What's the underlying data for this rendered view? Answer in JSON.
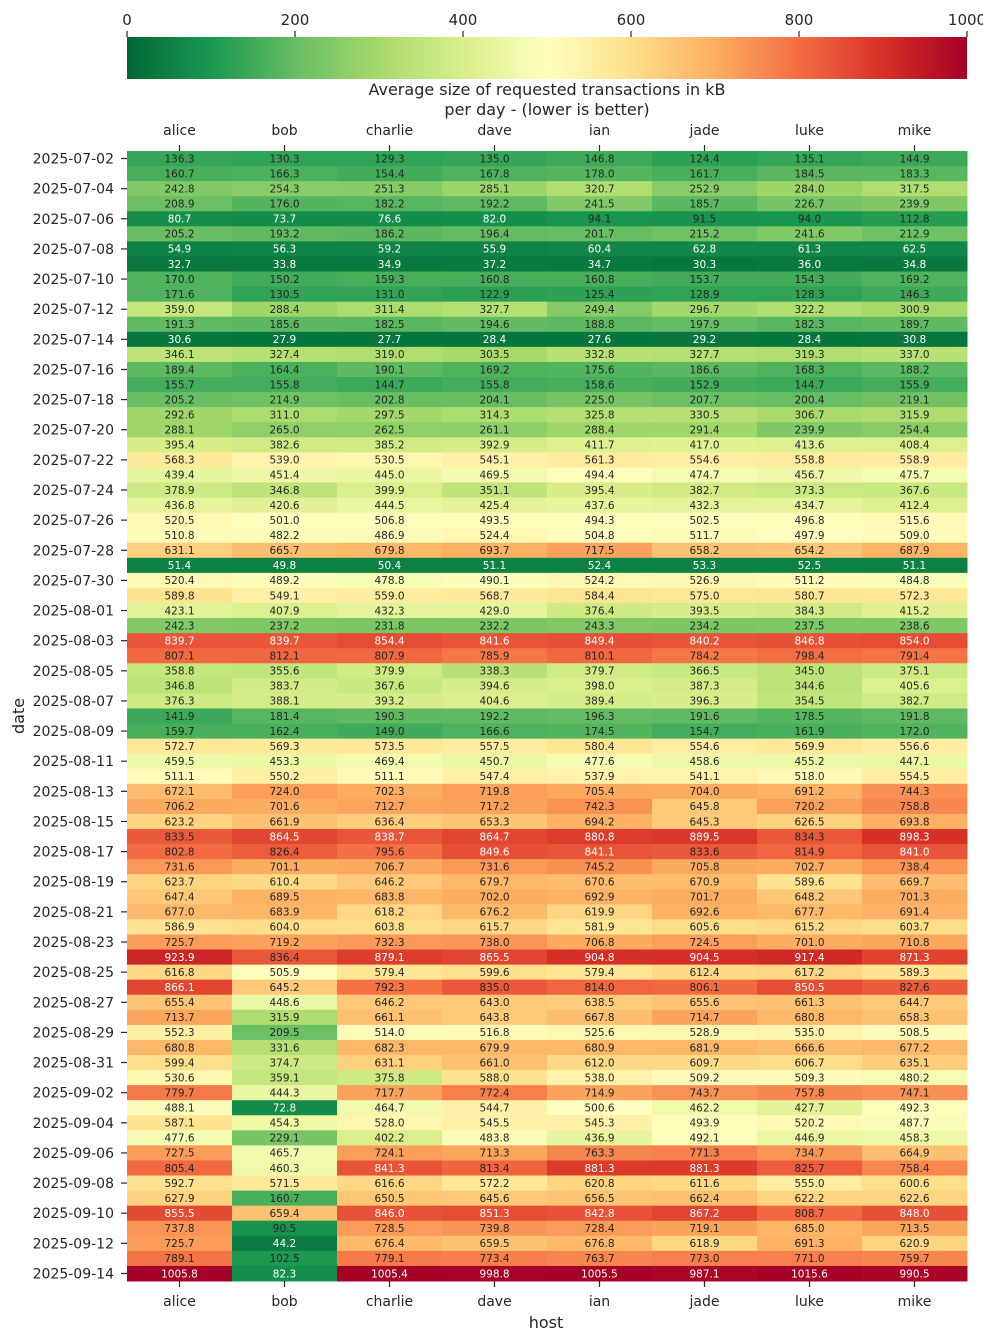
{
  "chart_data": {
    "type": "heatmap",
    "title": "Average size of requested transactions in kB\nper day - (lower is better)",
    "xlabel": "host",
    "ylabel": "date",
    "colormap": "RdYlGn_r",
    "colorbar": {
      "min": 0,
      "max": 1000,
      "ticks": [
        0,
        200,
        400,
        600,
        800,
        1000
      ]
    },
    "hosts": [
      "alice",
      "bob",
      "charlie",
      "dave",
      "ian",
      "jade",
      "luke",
      "mike"
    ],
    "dates": [
      "2025-07-02",
      "2025-07-03",
      "2025-07-04",
      "2025-07-05",
      "2025-07-06",
      "2025-07-07",
      "2025-07-08",
      "2025-07-09",
      "2025-07-10",
      "2025-07-11",
      "2025-07-12",
      "2025-07-13",
      "2025-07-14",
      "2025-07-15",
      "2025-07-16",
      "2025-07-17",
      "2025-07-18",
      "2025-07-19",
      "2025-07-20",
      "2025-07-21",
      "2025-07-22",
      "2025-07-23",
      "2025-07-24",
      "2025-07-25",
      "2025-07-26",
      "2025-07-27",
      "2025-07-28",
      "2025-07-29",
      "2025-07-30",
      "2025-07-31",
      "2025-08-01",
      "2025-08-02",
      "2025-08-03",
      "2025-08-04",
      "2025-08-05",
      "2025-08-06",
      "2025-08-07",
      "2025-08-08",
      "2025-08-09",
      "2025-08-10",
      "2025-08-11",
      "2025-08-12",
      "2025-08-13",
      "2025-08-14",
      "2025-08-15",
      "2025-08-16",
      "2025-08-17",
      "2025-08-18",
      "2025-08-19",
      "2025-08-20",
      "2025-08-21",
      "2025-08-22",
      "2025-08-23",
      "2025-08-24",
      "2025-08-25",
      "2025-08-26",
      "2025-08-27",
      "2025-08-28",
      "2025-08-29",
      "2025-08-30",
      "2025-08-31",
      "2025-09-01",
      "2025-09-02",
      "2025-09-03",
      "2025-09-04",
      "2025-09-05",
      "2025-09-06",
      "2025-09-07",
      "2025-09-08",
      "2025-09-09",
      "2025-09-10",
      "2025-09-11",
      "2025-09-12",
      "2025-09-13",
      "2025-09-14"
    ],
    "values": [
      [
        136.3,
        130.3,
        129.3,
        135.0,
        146.8,
        124.4,
        135.1,
        144.9
      ],
      [
        160.7,
        166.3,
        154.4,
        167.8,
        178.0,
        161.7,
        184.5,
        183.3
      ],
      [
        242.8,
        254.3,
        251.3,
        285.1,
        320.7,
        252.9,
        284.0,
        317.5
      ],
      [
        208.9,
        176.0,
        182.2,
        192.2,
        241.5,
        185.7,
        226.7,
        239.9
      ],
      [
        80.7,
        73.7,
        76.6,
        82.0,
        94.1,
        91.5,
        94.0,
        112.8
      ],
      [
        205.2,
        193.2,
        186.2,
        196.4,
        201.7,
        215.2,
        241.6,
        212.9
      ],
      [
        54.9,
        56.3,
        59.2,
        55.9,
        60.4,
        62.8,
        61.3,
        62.5
      ],
      [
        32.7,
        33.8,
        34.9,
        37.2,
        34.7,
        30.3,
        36.0,
        34.8
      ],
      [
        170.0,
        150.2,
        159.3,
        160.8,
        160.8,
        153.7,
        154.3,
        169.2
      ],
      [
        171.6,
        130.5,
        131.0,
        122.9,
        125.4,
        128.9,
        128.3,
        146.3
      ],
      [
        359.0,
        288.4,
        311.4,
        327.7,
        249.4,
        296.7,
        322.2,
        300.9
      ],
      [
        191.3,
        185.6,
        182.5,
        194.6,
        188.8,
        197.9,
        182.3,
        189.7
      ],
      [
        30.6,
        27.9,
        27.7,
        28.4,
        27.6,
        29.2,
        28.4,
        30.8
      ],
      [
        346.1,
        327.4,
        319.0,
        303.5,
        332.8,
        327.7,
        319.3,
        337.0
      ],
      [
        189.4,
        164.4,
        190.1,
        169.2,
        175.6,
        186.6,
        168.3,
        188.2
      ],
      [
        155.7,
        155.8,
        144.7,
        155.8,
        158.6,
        152.9,
        144.7,
        155.9
      ],
      [
        205.2,
        214.9,
        202.8,
        204.1,
        225.0,
        207.7,
        200.4,
        219.1
      ],
      [
        292.6,
        311.0,
        297.5,
        314.3,
        325.8,
        330.5,
        306.7,
        315.9
      ],
      [
        288.1,
        265.0,
        262.5,
        261.1,
        288.4,
        291.4,
        239.9,
        254.4
      ],
      [
        395.4,
        382.6,
        385.2,
        392.9,
        411.7,
        417.0,
        413.6,
        408.4
      ],
      [
        568.3,
        539.0,
        530.5,
        545.1,
        561.3,
        554.6,
        558.8,
        558.9
      ],
      [
        439.4,
        451.4,
        445.0,
        469.5,
        494.4,
        474.7,
        456.7,
        475.7
      ],
      [
        378.9,
        346.8,
        399.9,
        351.1,
        395.4,
        382.7,
        373.3,
        367.6
      ],
      [
        436.8,
        420.6,
        444.5,
        425.4,
        437.6,
        432.3,
        434.7,
        412.4
      ],
      [
        520.5,
        501.0,
        506.8,
        493.5,
        494.3,
        502.5,
        496.8,
        515.6
      ],
      [
        510.8,
        482.2,
        486.9,
        524.4,
        504.8,
        511.7,
        497.9,
        509.0
      ],
      [
        631.1,
        665.7,
        679.8,
        693.7,
        717.5,
        658.2,
        654.2,
        687.9
      ],
      [
        51.4,
        49.8,
        50.4,
        51.1,
        52.4,
        53.3,
        52.5,
        51.1
      ],
      [
        520.4,
        489.2,
        478.8,
        490.1,
        524.2,
        526.9,
        511.2,
        484.8
      ],
      [
        589.8,
        549.1,
        559.0,
        568.7,
        584.4,
        575.0,
        580.7,
        572.3
      ],
      [
        423.1,
        407.9,
        432.3,
        429.0,
        376.4,
        393.5,
        384.3,
        415.2
      ],
      [
        242.3,
        237.2,
        231.8,
        232.2,
        243.3,
        234.2,
        237.5,
        238.6
      ],
      [
        839.7,
        839.7,
        854.4,
        841.6,
        849.4,
        840.2,
        846.8,
        854.0
      ],
      [
        807.1,
        812.1,
        807.9,
        785.9,
        810.1,
        784.2,
        798.4,
        791.4
      ],
      [
        358.8,
        355.6,
        379.9,
        338.3,
        379.7,
        366.5,
        345.0,
        375.1
      ],
      [
        346.8,
        383.7,
        367.6,
        394.6,
        398.0,
        387.3,
        344.6,
        405.6
      ],
      [
        376.3,
        388.1,
        393.2,
        404.6,
        389.4,
        396.3,
        354.5,
        382.7
      ],
      [
        141.9,
        181.4,
        190.3,
        192.2,
        196.3,
        191.6,
        178.5,
        191.8
      ],
      [
        159.7,
        162.4,
        149.0,
        166.6,
        174.5,
        154.7,
        161.9,
        172.0
      ],
      [
        572.7,
        569.3,
        573.5,
        557.5,
        580.4,
        554.6,
        569.9,
        556.6
      ],
      [
        459.5,
        453.3,
        469.4,
        450.7,
        477.6,
        458.6,
        455.2,
        447.1
      ],
      [
        511.1,
        550.2,
        511.1,
        547.4,
        537.9,
        541.1,
        518.0,
        554.5
      ],
      [
        672.1,
        724.0,
        702.3,
        719.8,
        705.4,
        704.0,
        691.2,
        744.3
      ],
      [
        706.2,
        701.6,
        712.7,
        717.2,
        742.3,
        645.8,
        720.2,
        758.8
      ],
      [
        623.2,
        661.9,
        636.4,
        653.3,
        694.2,
        645.3,
        626.5,
        693.8
      ],
      [
        833.5,
        864.5,
        838.7,
        864.7,
        880.8,
        889.5,
        834.3,
        898.3
      ],
      [
        802.8,
        826.4,
        795.6,
        849.6,
        841.1,
        833.6,
        814.9,
        841.0
      ],
      [
        731.6,
        701.1,
        706.7,
        731.6,
        745.2,
        705.8,
        702.7,
        738.4
      ],
      [
        623.7,
        610.4,
        646.2,
        679.7,
        670.6,
        670.9,
        589.6,
        669.7
      ],
      [
        647.4,
        689.5,
        683.8,
        702.0,
        692.9,
        701.7,
        648.2,
        701.3
      ],
      [
        677.0,
        683.9,
        618.2,
        676.2,
        619.9,
        692.6,
        677.7,
        691.4
      ],
      [
        586.9,
        604.0,
        603.8,
        615.7,
        581.9,
        605.6,
        615.2,
        603.7
      ],
      [
        725.7,
        719.2,
        732.3,
        738.0,
        706.8,
        724.5,
        701.0,
        710.8
      ],
      [
        923.9,
        836.4,
        879.1,
        865.5,
        904.8,
        904.5,
        917.4,
        871.3
      ],
      [
        616.8,
        505.9,
        579.4,
        599.6,
        579.4,
        612.4,
        617.2,
        589.3
      ],
      [
        866.1,
        645.2,
        792.3,
        835.0,
        814.0,
        806.1,
        850.5,
        827.6
      ],
      [
        655.4,
        448.6,
        646.2,
        643.0,
        638.5,
        655.6,
        661.3,
        644.7
      ],
      [
        713.7,
        315.9,
        661.1,
        643.8,
        667.8,
        714.7,
        680.8,
        658.3
      ],
      [
        552.3,
        209.5,
        514.0,
        516.8,
        525.6,
        528.9,
        535.0,
        508.5
      ],
      [
        680.8,
        331.6,
        682.3,
        679.9,
        680.9,
        681.9,
        666.6,
        677.2
      ],
      [
        599.4,
        374.7,
        631.1,
        661.0,
        612.0,
        609.7,
        606.7,
        635.1
      ],
      [
        530.6,
        359.1,
        375.8,
        588.0,
        538.0,
        509.2,
        509.3,
        480.2
      ],
      [
        779.7,
        444.3,
        717.7,
        772.4,
        714.9,
        743.7,
        757.8,
        747.1
      ],
      [
        488.1,
        72.8,
        464.7,
        544.7,
        500.6,
        462.2,
        427.7,
        492.3
      ],
      [
        587.1,
        454.3,
        528.0,
        545.5,
        545.3,
        493.9,
        520.2,
        487.7
      ],
      [
        477.6,
        229.1,
        402.2,
        483.8,
        436.9,
        492.1,
        446.9,
        458.3
      ],
      [
        727.5,
        465.7,
        724.1,
        713.3,
        763.3,
        771.3,
        734.7,
        664.9
      ],
      [
        805.4,
        460.3,
        841.3,
        813.4,
        881.3,
        881.3,
        825.7,
        758.4
      ],
      [
        592.7,
        571.5,
        616.6,
        572.2,
        620.8,
        611.6,
        555.0,
        600.6
      ],
      [
        627.9,
        160.7,
        650.5,
        645.6,
        656.5,
        662.4,
        622.2,
        622.6
      ],
      [
        855.5,
        659.4,
        846.0,
        851.3,
        842.8,
        867.2,
        808.7,
        848.0
      ],
      [
        737.8,
        90.5,
        728.5,
        739.8,
        728.4,
        719.1,
        685.0,
        713.5
      ],
      [
        725.7,
        44.2,
        676.4,
        659.5,
        676.8,
        618.9,
        691.3,
        620.9
      ],
      [
        789.1,
        102.5,
        779.1,
        773.4,
        763.7,
        773.0,
        771.0,
        759.7
      ],
      [
        1005.8,
        82.3,
        1005.4,
        998.8,
        1005.5,
        987.1,
        1015.6,
        990.5
      ]
    ]
  }
}
